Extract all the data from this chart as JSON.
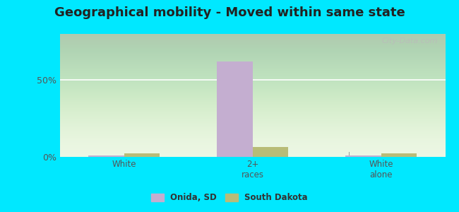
{
  "title": "Geographical mobility - Moved within same state",
  "categories": [
    "White",
    "2+\nraces",
    "White\nalone"
  ],
  "onida_values": [
    1.0,
    62.0,
    1.0
  ],
  "sd_values": [
    2.5,
    6.5,
    2.5
  ],
  "onida_color": "#c4aed0",
  "sd_color": "#b8bc78",
  "ylim": [
    0,
    80
  ],
  "yticks": [
    0,
    50
  ],
  "ytick_labels": [
    "0%",
    "50%"
  ],
  "background_top": "#f0faf0",
  "background_bottom": "#d8eec8",
  "outer_background": "#00e8ff",
  "title_fontsize": 13,
  "legend_labels": [
    "Onida, SD",
    "South Dakota"
  ],
  "watermark": "City-Data.com",
  "bar_width": 0.28
}
